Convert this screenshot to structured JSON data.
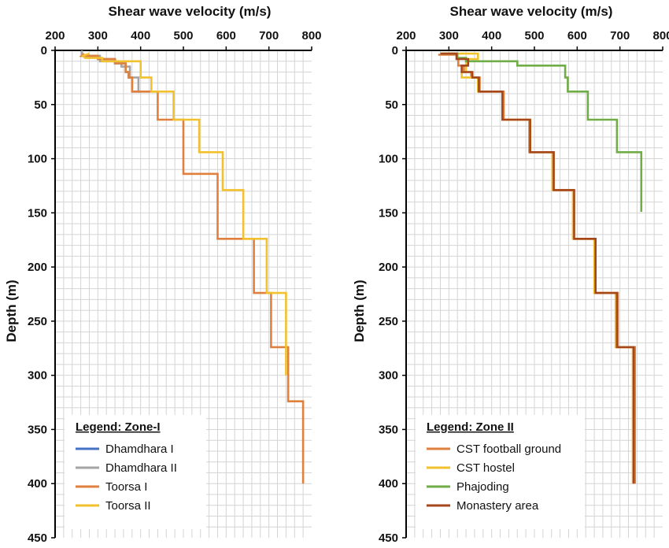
{
  "chart_data": [
    {
      "type": "line",
      "title": "",
      "xlabel": "Shear wave velocity (m/s)",
      "ylabel": "Depth (m)",
      "xlim": [
        200,
        800
      ],
      "ylim": [
        0,
        450
      ],
      "y_inverted": true,
      "x_axis_position": "top",
      "xticks": [
        "200",
        "300",
        "400",
        "500",
        "600",
        "700",
        "800"
      ],
      "yticks": [
        "0",
        "50",
        "100",
        "150",
        "200",
        "250",
        "300",
        "350",
        "400",
        "450"
      ],
      "grid": true,
      "legend_title": "Legend: Zone-I",
      "legend_position": "bottom-left",
      "series": [
        {
          "name": "Dhamdhara I",
          "color": "#4472c4",
          "points": [
            [
              263,
              0
            ],
            [
              263,
              5
            ],
            [
              300,
              5
            ],
            [
              300,
              8
            ],
            [
              340,
              8
            ],
            [
              340,
              12
            ],
            [
              365,
              12
            ],
            [
              365,
              20
            ],
            [
              372,
              20
            ],
            [
              372,
              25
            ],
            [
              380,
              25
            ],
            [
              380,
              38
            ],
            [
              400,
              38
            ]
          ]
        },
        {
          "name": "Dhamdhara II",
          "color": "#a5a5a5",
          "points": [
            [
              263,
              0
            ],
            [
              263,
              5
            ],
            [
              305,
              5
            ],
            [
              305,
              10
            ],
            [
              355,
              10
            ],
            [
              355,
              15
            ],
            [
              375,
              15
            ],
            [
              375,
              25
            ],
            [
              395,
              25
            ],
            [
              395,
              38
            ],
            [
              420,
              38
            ]
          ]
        },
        {
          "name": "Toorsa I",
          "color": "#e0803c",
          "points": [
            [
              268,
              3
            ],
            [
              262,
              5
            ],
            [
              300,
              5
            ],
            [
              300,
              8
            ],
            [
              340,
              8
            ],
            [
              340,
              12
            ],
            [
              365,
              12
            ],
            [
              365,
              20
            ],
            [
              372,
              20
            ],
            [
              372,
              25
            ],
            [
              380,
              25
            ],
            [
              380,
              38
            ],
            [
              403,
              38
            ],
            [
              403,
              38
            ],
            [
              440,
              38
            ],
            [
              440,
              64
            ],
            [
              500,
              64
            ],
            [
              500,
              114
            ],
            [
              580,
              114
            ],
            [
              580,
              174
            ],
            [
              665,
              174
            ],
            [
              665,
              224
            ],
            [
              705,
              224
            ],
            [
              705,
              274
            ],
            [
              745,
              274
            ],
            [
              745,
              324
            ],
            [
              780,
              324
            ],
            [
              780,
              400
            ]
          ]
        },
        {
          "name": "Toorsa II",
          "color": "#f2c12e",
          "points": [
            [
              280,
              3
            ],
            [
              265,
              5
            ],
            [
              270,
              7
            ],
            [
              310,
              7
            ],
            [
              310,
              10
            ],
            [
              400,
              10
            ],
            [
              400,
              25
            ],
            [
              425,
              25
            ],
            [
              425,
              38
            ],
            [
              477,
              38
            ],
            [
              477,
              64
            ],
            [
              537,
              64
            ],
            [
              537,
              94
            ],
            [
              592,
              94
            ],
            [
              592,
              129
            ],
            [
              640,
              129
            ],
            [
              640,
              174
            ],
            [
              695,
              174
            ],
            [
              695,
              224
            ],
            [
              740,
              224
            ],
            [
              740,
              300
            ]
          ]
        }
      ]
    },
    {
      "type": "line",
      "title": "",
      "xlabel": "Shear wave velocity (m/s)",
      "ylabel": "Depth (m)",
      "xlim": [
        200,
        800
      ],
      "ylim": [
        0,
        450
      ],
      "y_inverted": true,
      "x_axis_position": "top",
      "xticks": [
        "200",
        "300",
        "400",
        "500",
        "600",
        "700",
        "800"
      ],
      "yticks": [
        "0",
        "50",
        "100",
        "150",
        "200",
        "250",
        "300",
        "350",
        "400",
        "450"
      ],
      "grid": true,
      "legend_title": "Legend: Zone II",
      "legend_position": "bottom-left",
      "series": [
        {
          "name": "CST football ground",
          "color": "#e0803c",
          "points": [
            [
              275,
              4
            ],
            [
              318,
              4
            ],
            [
              318,
              8
            ],
            [
              322,
              8
            ],
            [
              322,
              14
            ],
            [
              335,
              14
            ],
            [
              335,
              20
            ],
            [
              352,
              20
            ],
            [
              352,
              25
            ],
            [
              372,
              25
            ],
            [
              372,
              38
            ],
            [
              428,
              38
            ],
            [
              428,
              64
            ],
            [
              488,
              64
            ],
            [
              488,
              94
            ],
            [
              545,
              94
            ],
            [
              545,
              129
            ],
            [
              592,
              129
            ],
            [
              592,
              174
            ],
            [
              643,
              174
            ],
            [
              643,
              224
            ],
            [
              695,
              224
            ],
            [
              695,
              274
            ],
            [
              735,
              274
            ],
            [
              735,
              400
            ]
          ]
        },
        {
          "name": "CST hostel",
          "color": "#f2c12e",
          "points": [
            [
              280,
              3
            ],
            [
              368,
              3
            ],
            [
              368,
              8
            ],
            [
              340,
              8
            ],
            [
              340,
              20
            ],
            [
              330,
              20
            ],
            [
              330,
              25
            ],
            [
              368,
              25
            ],
            [
              368,
              38
            ],
            [
              425,
              38
            ],
            [
              425,
              64
            ],
            [
              490,
              64
            ],
            [
              490,
              94
            ],
            [
              542,
              94
            ],
            [
              542,
              129
            ],
            [
              590,
              129
            ],
            [
              590,
              174
            ],
            [
              640,
              174
            ],
            [
              640,
              224
            ],
            [
              690,
              224
            ],
            [
              690,
              274
            ],
            [
              730,
              274
            ],
            [
              730,
              400
            ]
          ]
        },
        {
          "name": "Phajoding",
          "color": "#70ad47",
          "points": [
            [
              285,
              3
            ],
            [
              320,
              3
            ],
            [
              320,
              7
            ],
            [
              340,
              7
            ],
            [
              340,
              10
            ],
            [
              460,
              10
            ],
            [
              460,
              14
            ],
            [
              572,
              14
            ],
            [
              572,
              25
            ],
            [
              578,
              25
            ],
            [
              578,
              38
            ],
            [
              625,
              38
            ],
            [
              625,
              64
            ],
            [
              693,
              64
            ],
            [
              693,
              94
            ],
            [
              750,
              94
            ],
            [
              750,
              149
            ]
          ]
        },
        {
          "name": "Monastery area",
          "color": "#a5461b",
          "points": [
            [
              280,
              3
            ],
            [
              318,
              3
            ],
            [
              318,
              8
            ],
            [
              345,
              8
            ],
            [
              345,
              14
            ],
            [
              330,
              14
            ],
            [
              330,
              20
            ],
            [
              355,
              20
            ],
            [
              355,
              25
            ],
            [
              370,
              25
            ],
            [
              370,
              38
            ],
            [
              425,
              38
            ],
            [
              425,
              64
            ],
            [
              490,
              64
            ],
            [
              490,
              94
            ],
            [
              545,
              94
            ],
            [
              545,
              129
            ],
            [
              593,
              129
            ],
            [
              593,
              174
            ],
            [
              643,
              174
            ],
            [
              643,
              224
            ],
            [
              693,
              224
            ],
            [
              693,
              274
            ],
            [
              732,
              274
            ],
            [
              732,
              400
            ]
          ]
        }
      ]
    }
  ]
}
